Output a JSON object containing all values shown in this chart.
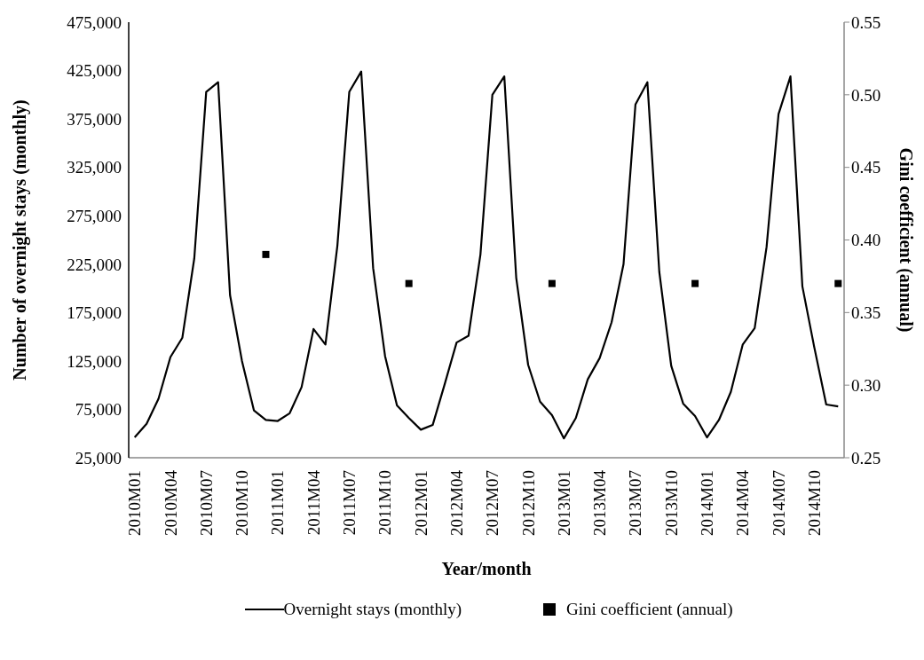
{
  "chart_data": {
    "type": "line",
    "xlabel": "Year/month",
    "ylabel": "Number of overnight stays (monthly)",
    "y2label": "Gini coefficient (annual)",
    "categories": [
      "2010M01",
      null,
      null,
      "2010M04",
      null,
      null,
      "2010M07",
      null,
      null,
      "2010M10",
      null,
      null,
      "2011M01",
      null,
      null,
      "2011M04",
      null,
      null,
      "2011M07",
      null,
      null,
      "2011M10",
      null,
      null,
      "2012M01",
      null,
      null,
      "2012M04",
      null,
      null,
      "2012M07",
      null,
      null,
      "2012M10",
      null,
      null,
      "2013M01",
      null,
      null,
      "2013M04",
      null,
      null,
      "2013M07",
      null,
      null,
      "2013M10",
      null,
      null,
      "2014M01",
      null,
      null,
      "2014M04",
      null,
      null,
      "2014M07",
      null,
      null,
      "2014M10",
      null,
      null
    ],
    "series": [
      {
        "name": "Overnight stays (monthly)",
        "color": "#000000",
        "marker": "none",
        "line_style": "solid",
        "values": [
          46000,
          60000,
          86000,
          129000,
          149000,
          231000,
          403000,
          413000,
          193000,
          125000,
          74000,
          64000,
          63000,
          71000,
          98000,
          158000,
          142000,
          244000,
          403000,
          424000,
          221000,
          130000,
          79000,
          66000,
          54000,
          59000,
          101000,
          144000,
          151000,
          235000,
          400000,
          419000,
          211000,
          121000,
          83000,
          69000,
          45000,
          66000,
          106000,
          128000,
          165000,
          225000,
          390000,
          413000,
          217000,
          120000,
          81000,
          68000,
          46000,
          64000,
          93000,
          142000,
          159000,
          243000,
          380000,
          419000,
          202000,
          139000,
          80000,
          78000
        ]
      },
      {
        "name": "Gini coefficient (annual)",
        "type": "scatter",
        "axis": "y2",
        "color": "#000000",
        "marker": "square",
        "values": [
          null,
          null,
          null,
          null,
          null,
          null,
          null,
          null,
          null,
          null,
          null,
          0.39,
          null,
          null,
          null,
          null,
          null,
          null,
          null,
          null,
          null,
          null,
          null,
          0.37,
          null,
          null,
          null,
          null,
          null,
          null,
          null,
          null,
          null,
          null,
          null,
          0.37,
          null,
          null,
          null,
          null,
          null,
          null,
          null,
          null,
          null,
          null,
          null,
          0.37,
          null,
          null,
          null,
          null,
          null,
          null,
          null,
          null,
          null,
          null,
          null,
          0.37
        ]
      }
    ],
    "ylim": [
      25000,
      475000
    ],
    "yticks": [
      {
        "value": 25000,
        "label": "25,000"
      },
      {
        "value": 75000,
        "label": "75,000"
      },
      {
        "value": 125000,
        "label": "125,000"
      },
      {
        "value": 175000,
        "label": "175,000"
      },
      {
        "value": 225000,
        "label": "225,000"
      },
      {
        "value": 275000,
        "label": "275,000"
      },
      {
        "value": 325000,
        "label": "325,000"
      },
      {
        "value": 375000,
        "label": "375,000"
      },
      {
        "value": 425000,
        "label": "425,000"
      },
      {
        "value": 475000,
        "label": "475,000"
      }
    ],
    "y2lim": [
      0.25,
      0.55
    ],
    "y2ticks": [
      {
        "value": 0.25,
        "label": "0.25"
      },
      {
        "value": 0.3,
        "label": "0.30"
      },
      {
        "value": 0.35,
        "label": "0.35"
      },
      {
        "value": 0.4,
        "label": "0.40"
      },
      {
        "value": 0.45,
        "label": "0.45"
      },
      {
        "value": 0.5,
        "label": "0.50"
      },
      {
        "value": 0.55,
        "label": "0.55"
      }
    ],
    "legend": "bottom"
  }
}
